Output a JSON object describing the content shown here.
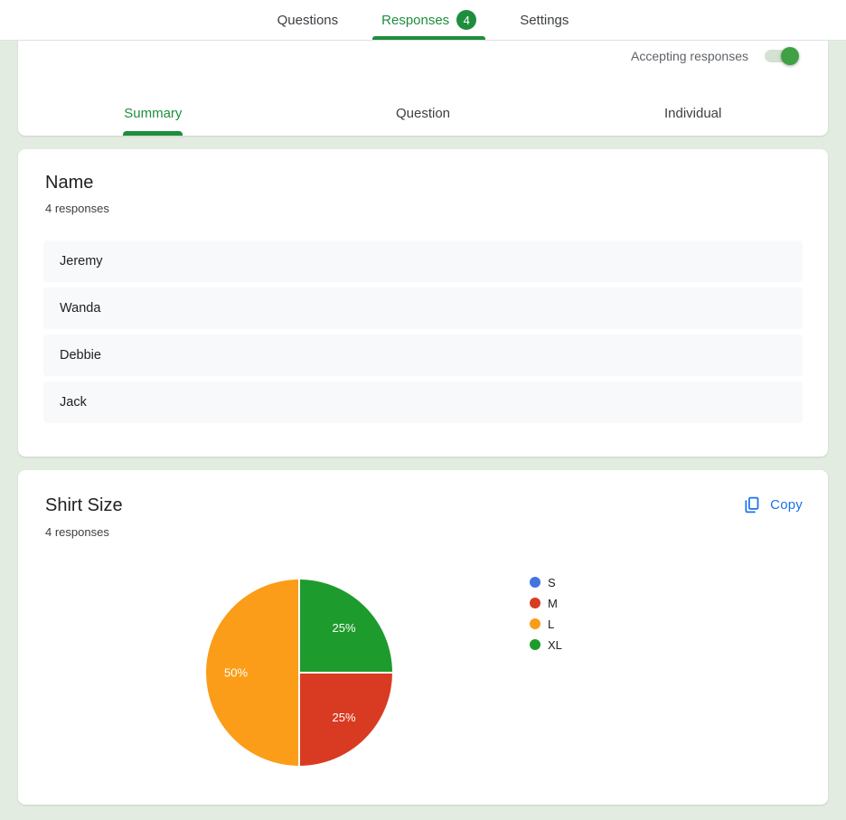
{
  "nav": {
    "items": [
      {
        "label": "Questions",
        "active": false
      },
      {
        "label": "Responses",
        "active": true,
        "badge": "4"
      },
      {
        "label": "Settings",
        "active": false
      }
    ]
  },
  "toolbar": {
    "accepting_label": "Accepting responses",
    "toggle_on": true
  },
  "tabs": [
    {
      "label": "Summary",
      "active": true
    },
    {
      "label": "Question",
      "active": false
    },
    {
      "label": "Individual",
      "active": false
    }
  ],
  "name_card": {
    "title": "Name",
    "responses_label": "4 responses",
    "answers": [
      "Jeremy",
      "Wanda",
      "Debbie",
      "Jack"
    ]
  },
  "shirt_card": {
    "title": "Shirt Size",
    "responses_label": "4 responses",
    "copy_label": "Copy"
  },
  "chart_data": {
    "type": "pie",
    "title": "Shirt Size",
    "categories": [
      "S",
      "M",
      "L",
      "XL"
    ],
    "values": [
      0,
      1,
      2,
      1
    ],
    "percent_labels": [
      "",
      "25%",
      "50%",
      "25%"
    ],
    "colors": [
      "#4374e0",
      "#d93b22",
      "#fb9d18",
      "#1e9b2d"
    ],
    "total_responses": 4,
    "legend_position": "right",
    "start_angle": "east",
    "direction": "clockwise",
    "slice_border_color": "#ffffff"
  }
}
